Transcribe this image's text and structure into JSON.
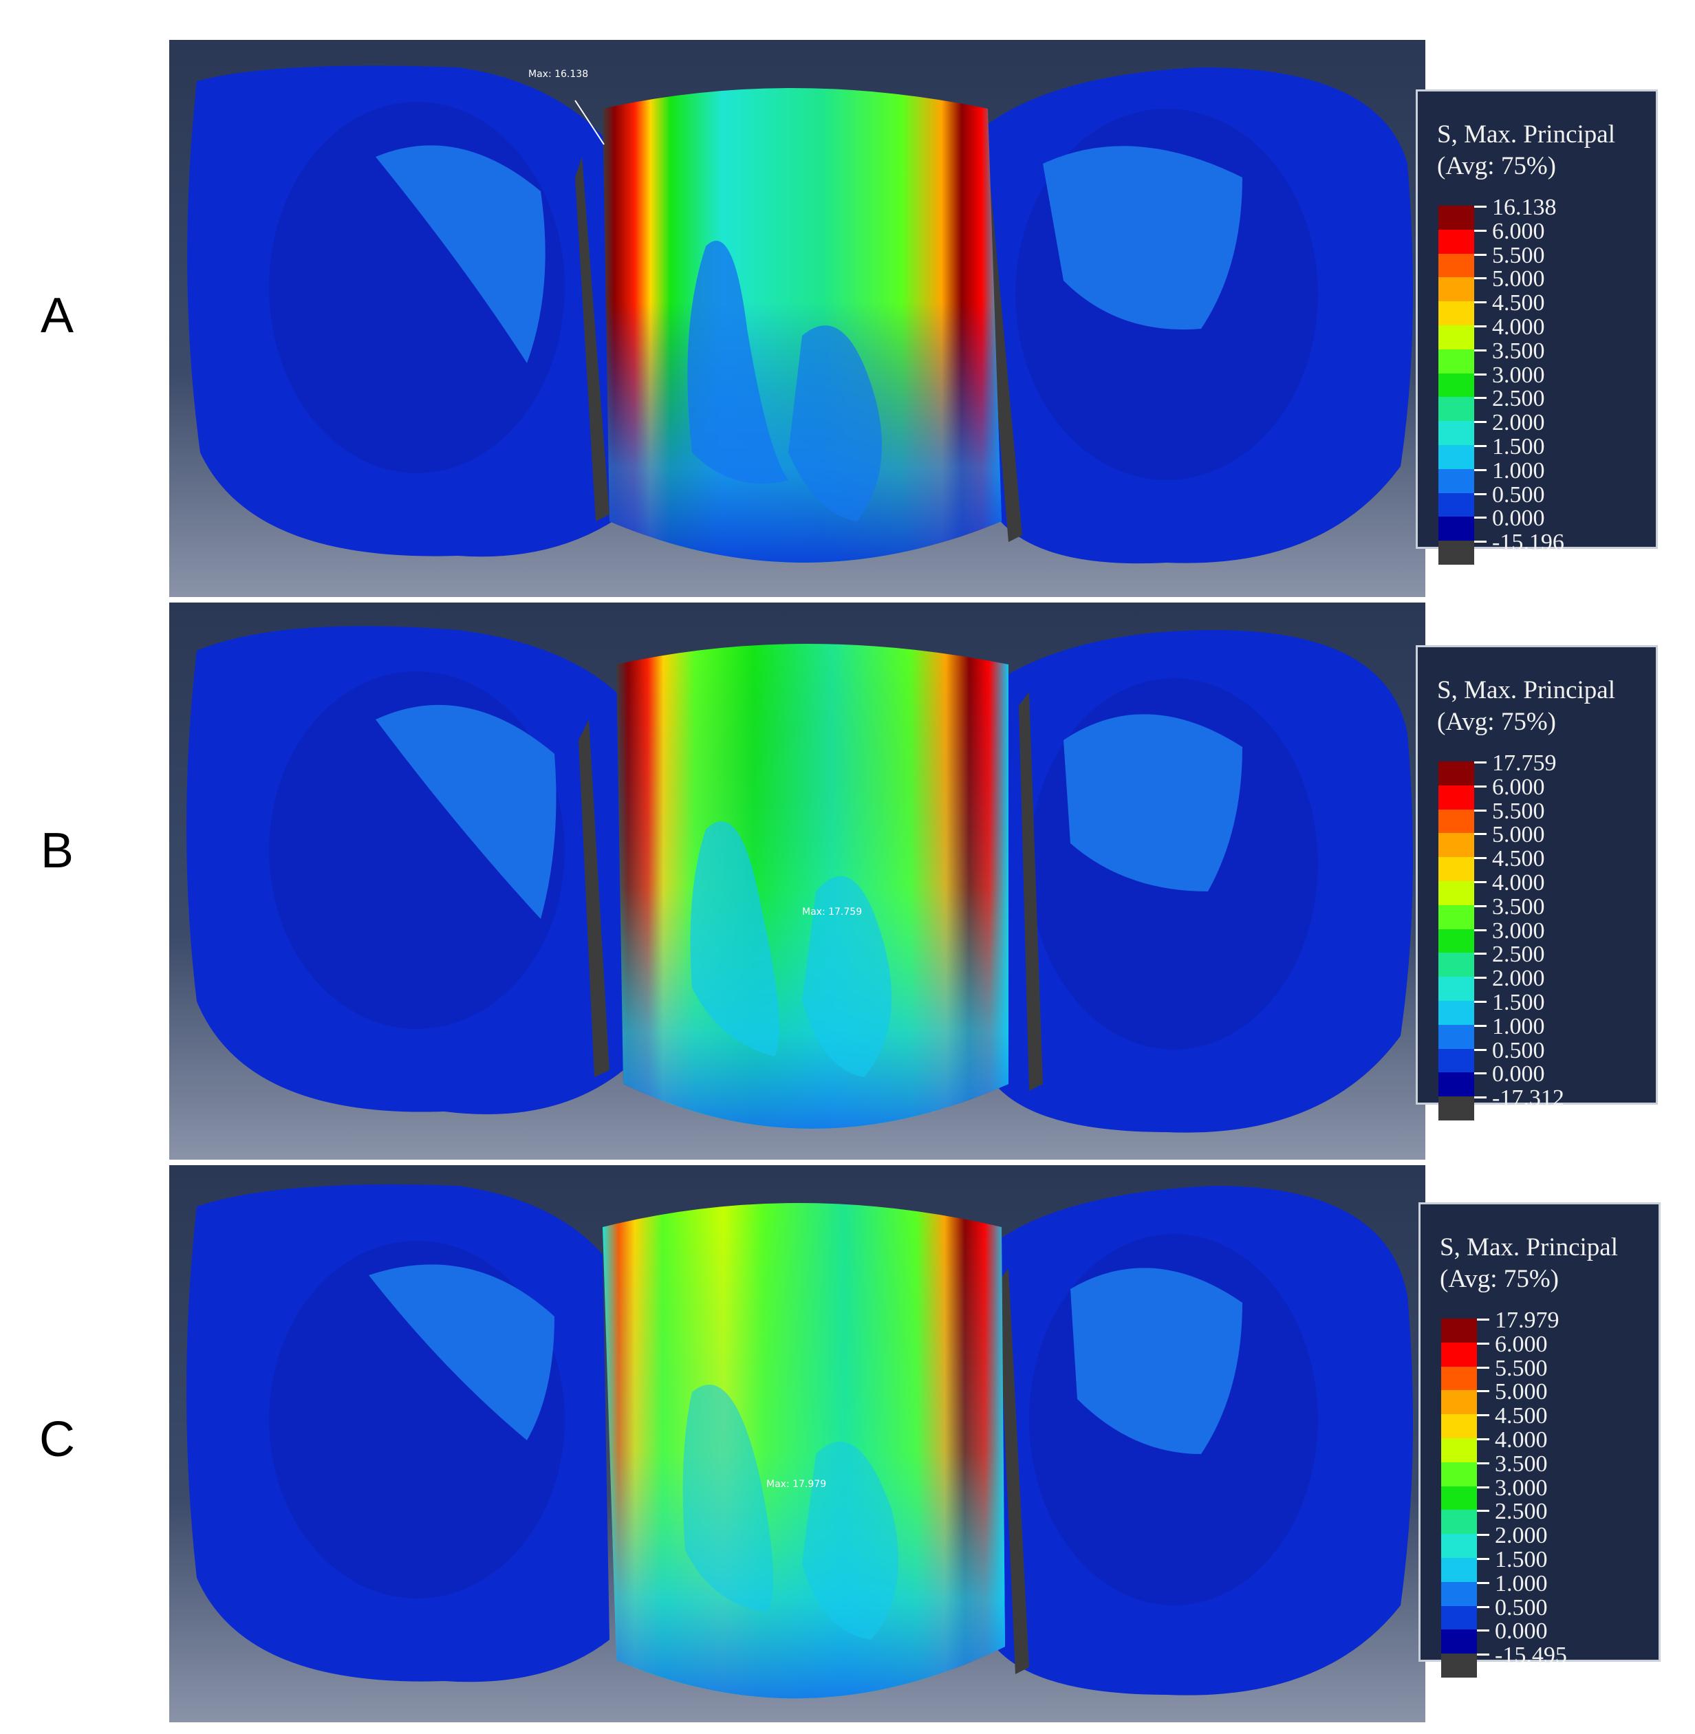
{
  "panels": [
    {
      "letter": "A",
      "max_label": "Max: 16.138",
      "legend": {
        "title_line1": "S, Max. Principal",
        "title_line2": "(Avg: 75%)",
        "values": [
          "16.138",
          "6.000",
          "5.500",
          "5.000",
          "4.500",
          "4.000",
          "3.500",
          "3.000",
          "2.500",
          "2.000",
          "1.500",
          "1.000",
          "0.500",
          "0.000",
          "-15.196"
        ]
      }
    },
    {
      "letter": "B",
      "max_label": "Max: 17.759",
      "legend": {
        "title_line1": "S, Max. Principal",
        "title_line2": "(Avg: 75%)",
        "values": [
          "17.759",
          "6.000",
          "5.500",
          "5.000",
          "4.500",
          "4.000",
          "3.500",
          "3.000",
          "2.500",
          "2.000",
          "1.500",
          "1.000",
          "0.500",
          "0.000",
          "-17.312"
        ]
      }
    },
    {
      "letter": "C",
      "max_label": "Max: 17.979",
      "legend": {
        "title_line1": "S, Max. Principal",
        "title_line2": "(Avg: 75%)",
        "values": [
          "17.979",
          "6.000",
          "5.500",
          "5.000",
          "4.500",
          "4.000",
          "3.500",
          "3.000",
          "2.500",
          "2.000",
          "1.500",
          "1.000",
          "0.500",
          "0.000",
          "-15.495"
        ]
      }
    }
  ],
  "colors": {
    "scale": [
      "#8b0000",
      "#ff0000",
      "#ff5a00",
      "#ffa500",
      "#ffd700",
      "#c8ff00",
      "#5aff1e",
      "#14e614",
      "#1ee68c",
      "#1ee6d2",
      "#14c8f0",
      "#1478f0",
      "#0a3cdc",
      "#0000a0",
      "#3c3c3c"
    ],
    "viewport_top": "#2a3855",
    "viewport_bottom": "#8a93a8",
    "legend_bg": "#1e2a45"
  }
}
